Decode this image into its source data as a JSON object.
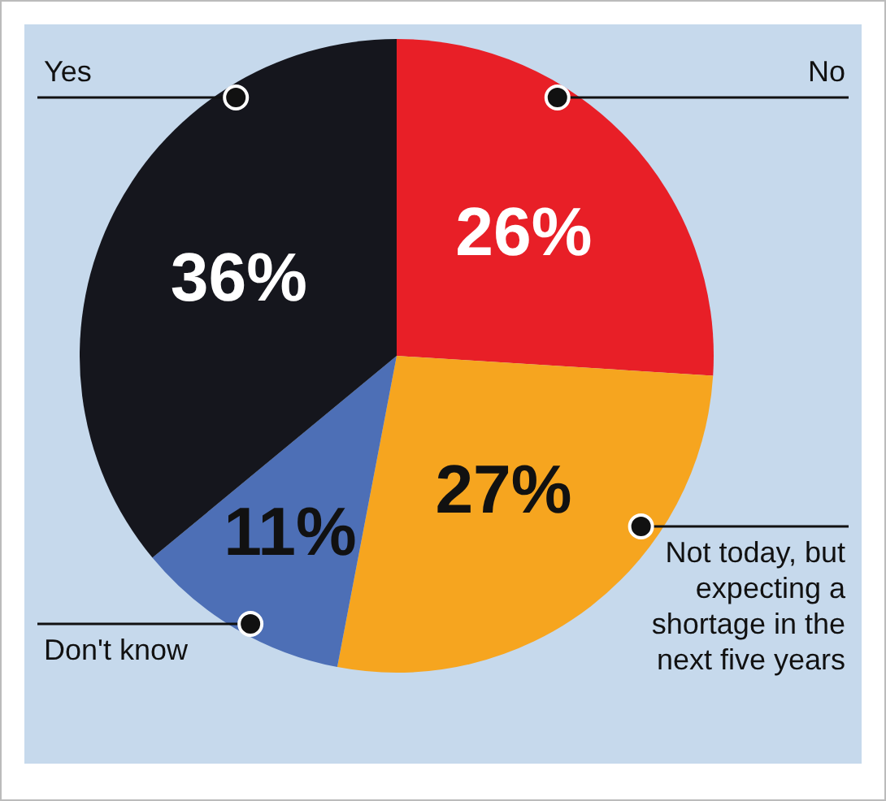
{
  "chart_data": {
    "type": "pie",
    "categories": [
      "No",
      "Not today, but expecting a shortage in the next five years",
      "Don't know",
      "Yes"
    ],
    "values": [
      26,
      27,
      11,
      36
    ],
    "colors": [
      "#e81f27",
      "#f6a51f",
      "#4d6fb6",
      "#15161d"
    ],
    "value_labels": [
      "26%",
      "27%",
      "11%",
      "36%"
    ],
    "legend": false
  }
}
